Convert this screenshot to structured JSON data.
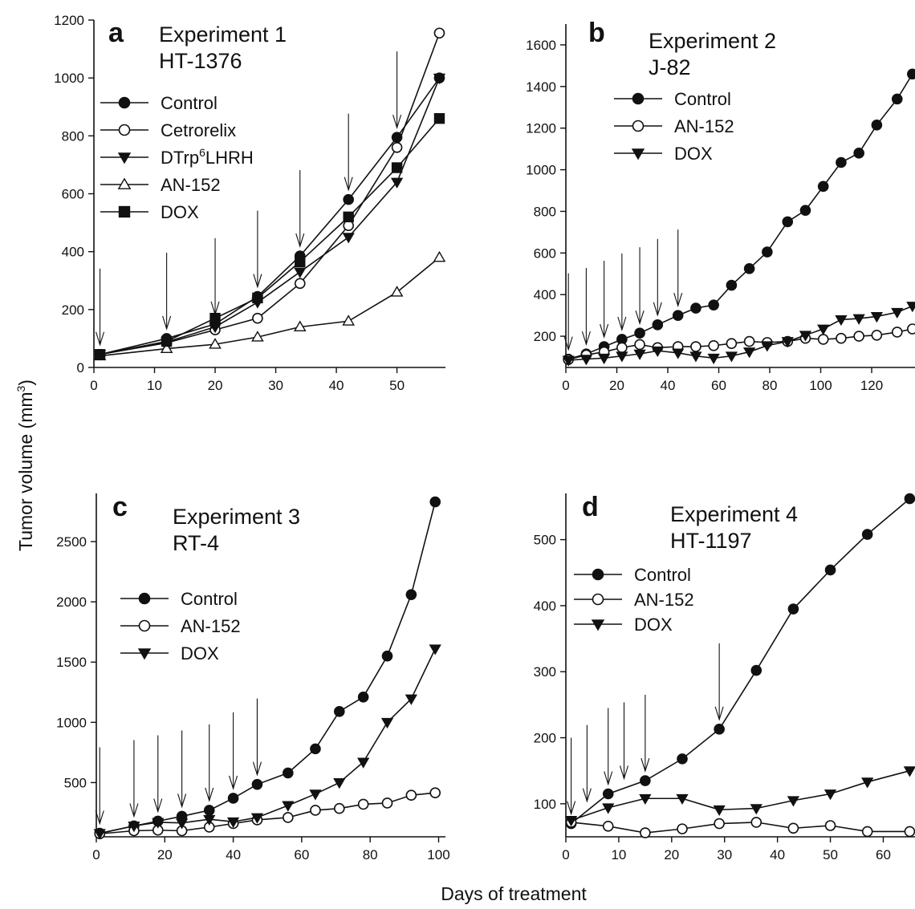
{
  "figure": {
    "ylabel": "Tumor volume (mm",
    "ylabel_sup": "3",
    "ylabel_close": ")",
    "xlabel": "Days of treatment"
  },
  "chart_data": [
    {
      "type": "line",
      "panel": "a",
      "title": "Experiment 1",
      "subtitle": "HT-1376",
      "legend_position": "top-left",
      "xlim": [
        0,
        58
      ],
      "ylim": [
        0,
        1200
      ],
      "xticks": [
        0,
        10,
        20,
        30,
        40,
        50
      ],
      "yticks": [
        0,
        200,
        400,
        600,
        800,
        1000,
        1200
      ],
      "series": [
        {
          "name": "Control",
          "marker": "circle-filled",
          "x": [
            1,
            12,
            20,
            27,
            34,
            42,
            50,
            57
          ],
          "y": [
            45,
            100,
            150,
            245,
            385,
            580,
            795,
            1000
          ]
        },
        {
          "name": "Cetrorelix",
          "marker": "circle-open",
          "x": [
            1,
            12,
            20,
            27,
            34,
            42,
            50,
            57
          ],
          "y": [
            45,
            85,
            130,
            170,
            290,
            490,
            760,
            1155
          ]
        },
        {
          "name": "DTrp",
          "name_sup": "6",
          "name_rest": "LHRH",
          "marker": "triangle-down-filled",
          "x": [
            1,
            12,
            20,
            27,
            34,
            42,
            50,
            57
          ],
          "y": [
            45,
            88,
            140,
            225,
            330,
            450,
            640,
            1000
          ]
        },
        {
          "name": "AN-152",
          "marker": "triangle-up-open",
          "x": [
            1,
            12,
            20,
            27,
            34,
            42,
            50,
            57
          ],
          "y": [
            40,
            65,
            80,
            105,
            140,
            160,
            260,
            380
          ]
        },
        {
          "name": "DOX",
          "marker": "square-filled",
          "x": [
            1,
            12,
            20,
            27,
            34,
            42,
            50,
            57
          ],
          "y": [
            45,
            90,
            170,
            240,
            365,
            520,
            690,
            860
          ]
        }
      ],
      "arrows_x": [
        1,
        12,
        20,
        27,
        34,
        42,
        50
      ]
    },
    {
      "type": "line",
      "panel": "b",
      "title": "Experiment 2",
      "subtitle": "J-82",
      "legend_position": "top-left",
      "xlim": [
        0,
        137
      ],
      "ylim": [
        50,
        1700
      ],
      "xticks": [
        0,
        20,
        40,
        60,
        80,
        100,
        120
      ],
      "yticks": [
        200,
        400,
        600,
        800,
        1000,
        1200,
        1400,
        1600
      ],
      "series": [
        {
          "name": "Control",
          "marker": "circle-filled",
          "x": [
            1,
            8,
            15,
            22,
            29,
            36,
            44,
            51,
            58,
            65,
            72,
            79,
            87,
            94,
            101,
            108,
            115,
            122,
            130,
            136
          ],
          "y": [
            90,
            115,
            150,
            185,
            215,
            255,
            300,
            335,
            350,
            445,
            525,
            605,
            750,
            805,
            920,
            1035,
            1080,
            1215,
            1340,
            1460
          ]
        },
        {
          "name": "AN-152",
          "marker": "circle-open",
          "x": [
            1,
            8,
            15,
            22,
            29,
            36,
            44,
            51,
            58,
            65,
            72,
            79,
            87,
            94,
            101,
            108,
            115,
            122,
            130,
            136
          ],
          "y": [
            88,
            110,
            125,
            145,
            160,
            145,
            150,
            150,
            155,
            165,
            175,
            170,
            175,
            190,
            185,
            190,
            200,
            205,
            220,
            235
          ]
        },
        {
          "name": "DOX",
          "marker": "triangle-down-filled",
          "x": [
            1,
            8,
            15,
            22,
            29,
            36,
            44,
            51,
            58,
            65,
            72,
            79,
            87,
            94,
            101,
            108,
            115,
            122,
            130,
            136
          ],
          "y": [
            85,
            90,
            95,
            105,
            115,
            130,
            120,
            105,
            95,
            105,
            125,
            155,
            175,
            205,
            235,
            280,
            285,
            295,
            315,
            345
          ]
        }
      ],
      "arrows_x": [
        1,
        8,
        15,
        22,
        29,
        36,
        44
      ]
    },
    {
      "type": "line",
      "panel": "c",
      "title": "Experiment 3",
      "subtitle": "RT-4",
      "legend_position": "top-left",
      "xlim": [
        0,
        102
      ],
      "ylim": [
        50,
        2900
      ],
      "xticks": [
        0,
        20,
        40,
        60,
        80,
        100
      ],
      "yticks": [
        500,
        1000,
        1500,
        2000,
        2500
      ],
      "series": [
        {
          "name": "Control",
          "marker": "circle-filled",
          "x": [
            1,
            11,
            18,
            25,
            33,
            40,
            47,
            56,
            64,
            71,
            78,
            85,
            92,
            99
          ],
          "y": [
            80,
            140,
            180,
            220,
            270,
            370,
            485,
            580,
            780,
            1090,
            1210,
            1550,
            2060,
            2830
          ]
        },
        {
          "name": "AN-152",
          "marker": "circle-open",
          "x": [
            1,
            11,
            18,
            25,
            33,
            40,
            47,
            56,
            64,
            71,
            78,
            85,
            92,
            99
          ],
          "y": [
            75,
            100,
            105,
            100,
            130,
            160,
            190,
            210,
            270,
            285,
            320,
            330,
            395,
            415
          ]
        },
        {
          "name": "DOX",
          "marker": "triangle-down-filled",
          "x": [
            1,
            11,
            18,
            25,
            33,
            40,
            47,
            56,
            64,
            71,
            78,
            85,
            92,
            99
          ],
          "y": [
            78,
            140,
            170,
            165,
            195,
            175,
            210,
            310,
            405,
            500,
            670,
            1000,
            1195,
            1610
          ]
        }
      ],
      "arrows_x": [
        1,
        11,
        18,
        25,
        33,
        40,
        47
      ]
    },
    {
      "type": "line",
      "panel": "d",
      "title": "Experiment 4",
      "subtitle": "HT-1197",
      "legend_position": "top-left",
      "xlim": [
        0,
        66
      ],
      "ylim": [
        50,
        570
      ],
      "xticks": [
        0,
        10,
        20,
        30,
        40,
        50,
        60
      ],
      "yticks": [
        100,
        200,
        300,
        400,
        500
      ],
      "series": [
        {
          "name": "Control",
          "marker": "circle-filled",
          "x": [
            1,
            8,
            15,
            22,
            29,
            36,
            43,
            50,
            57,
            65
          ],
          "y": [
            70,
            115,
            135,
            168,
            213,
            302,
            395,
            454,
            508,
            562
          ]
        },
        {
          "name": "AN-152",
          "marker": "circle-open",
          "x": [
            1,
            8,
            15,
            22,
            29,
            36,
            43,
            50,
            57,
            65
          ],
          "y": [
            72,
            66,
            56,
            62,
            70,
            72,
            63,
            67,
            58,
            58
          ]
        },
        {
          "name": "DOX",
          "marker": "triangle-down-filled",
          "x": [
            1,
            8,
            15,
            22,
            29,
            36,
            43,
            50,
            57,
            65
          ],
          "y": [
            75,
            94,
            108,
            108,
            91,
            93,
            105,
            115,
            133,
            150
          ]
        }
      ],
      "arrows_x": [
        1,
        4,
        8,
        11,
        15,
        29
      ]
    }
  ]
}
